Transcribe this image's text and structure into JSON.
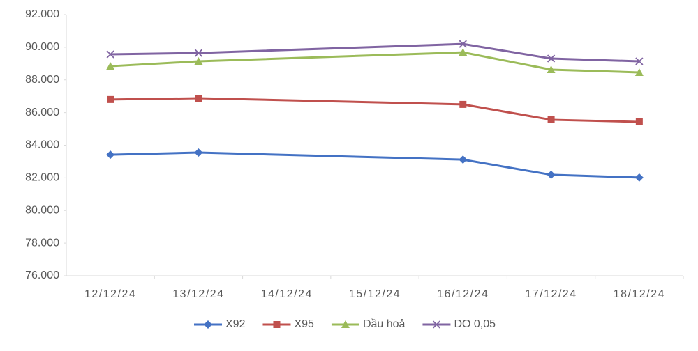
{
  "chart_data": {
    "type": "line",
    "x": [
      "12/12/24",
      "13/12/24",
      "16/12/24",
      "17/12/24",
      "18/12/24"
    ],
    "xticks": [
      "12/12/24",
      "13/12/24",
      "14/12/24",
      "15/12/24",
      "16/12/24",
      "17/12/24",
      "18/12/24"
    ],
    "series": [
      {
        "name": "X92",
        "color": "#4472c4",
        "marker": "diamond",
        "values": [
          83420,
          83550,
          83120,
          82190,
          82020
        ]
      },
      {
        "name": "X95",
        "color": "#c0504d",
        "marker": "square",
        "values": [
          86800,
          86880,
          86500,
          85560,
          85430
        ]
      },
      {
        "name": "Dầu hoả",
        "color": "#9bbb59",
        "marker": "triangle",
        "values": [
          88840,
          89140,
          89690,
          88630,
          88460
        ]
      },
      {
        "name": "DO 0,05",
        "color": "#8064a2",
        "marker": "x",
        "values": [
          89570,
          89650,
          90200,
          89310,
          89140
        ]
      }
    ],
    "ylim": [
      76000,
      92000
    ],
    "yticks": [
      {
        "value": 76000,
        "label": "76.000"
      },
      {
        "value": 78000,
        "label": "78.000"
      },
      {
        "value": 80000,
        "label": "80.000"
      },
      {
        "value": 82000,
        "label": "82.000"
      },
      {
        "value": 84000,
        "label": "84.000"
      },
      {
        "value": 86000,
        "label": "86.000"
      },
      {
        "value": 88000,
        "label": "88.000"
      },
      {
        "value": 90000,
        "label": "90.000"
      },
      {
        "value": 92000,
        "label": "92.000"
      }
    ],
    "grid": false,
    "legend": "bottom"
  }
}
